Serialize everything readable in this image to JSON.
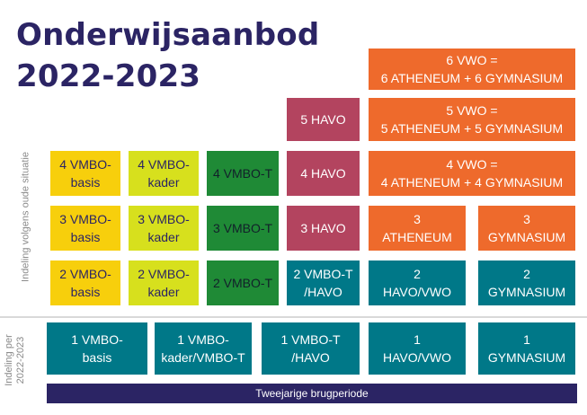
{
  "title": {
    "line1": "Onderwijsaanbod",
    "line2": "2022-2023"
  },
  "side_labels": {
    "old": "Indeling volgens oude situatie",
    "new_line1": "Indeling per",
    "new_line2": "2022-2023"
  },
  "grid": {
    "vmbo_basis_4": "4 VMBO-\nbasis",
    "vmbo_kader_4": "4 VMBO-\nkader",
    "vmbo_t_4": "4 VMBO-T",
    "havo_5": "5 HAVO",
    "havo_4": "4 HAVO",
    "vwo_6": "6 VWO =\n6 ATHENEUM + 6 GYMNASIUM",
    "vwo_5": "5 VWO =\n5 ATHENEUM + 5 GYMNASIUM",
    "vwo_4": "4 VWO =\n4 ATHENEUM + 4 GYMNASIUM",
    "vmbo_basis_3": "3 VMBO-\nbasis",
    "vmbo_kader_3": "3 VMBO-\nkader",
    "vmbo_t_3": "3 VMBO-T",
    "havo_3": "3 HAVO",
    "atheneum_3": "3\nATHENEUM",
    "gymnasium_3": "3\nGYMNASIUM",
    "vmbo_basis_2": "2 VMBO-\nbasis",
    "vmbo_kader_2": "2 VMBO-\nkader",
    "vmbo_t_2": "2 VMBO-T",
    "vmbo_t_havo_2": "2 VMBO-T\n/HAVO",
    "havo_vwo_2": "2\nHAVO/VWO",
    "gymnasium_2": "2\nGYMNASIUM",
    "vmbo_basis_1": "1 VMBO-\nbasis",
    "vmbo_kader_1": "1 VMBO-\nkader/VMBO-T",
    "vmbo_t_havo_1": "1 VMBO-T\n/HAVO",
    "havo_vwo_1": "1\nHAVO/VWO",
    "gymnasium_1": "1\nGYMNASIUM"
  },
  "bridge": "Tweejarige brugperiode"
}
